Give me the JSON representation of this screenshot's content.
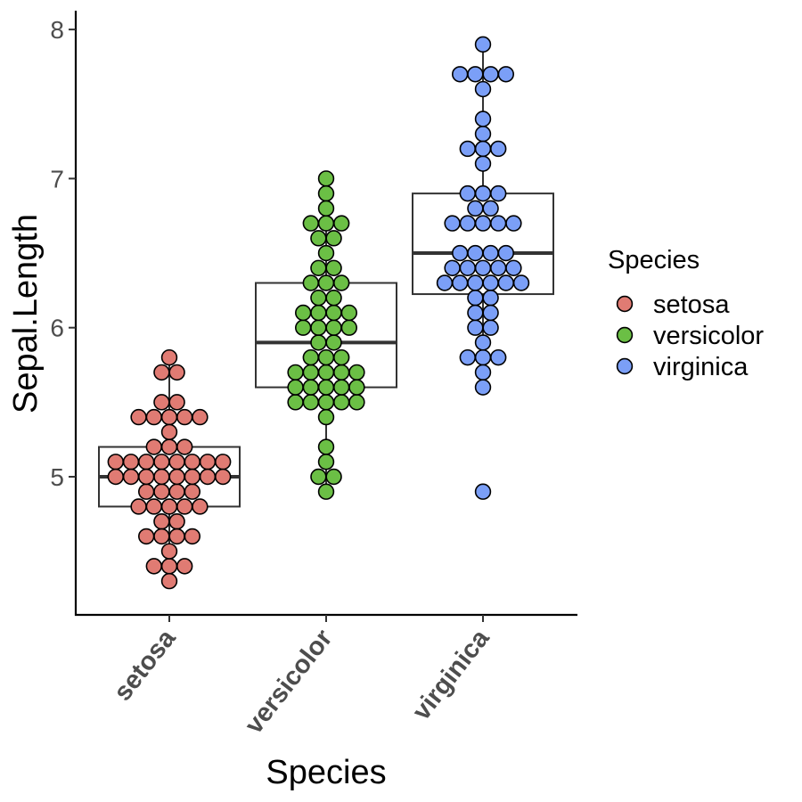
{
  "chart_data": {
    "type": "boxplot-dotplot",
    "xlabel": "Species",
    "ylabel": "Sepal.Length",
    "categories": [
      "setosa",
      "versicolor",
      "virginica"
    ],
    "colors": {
      "setosa": "#E07B73",
      "versicolor": "#6BBF45",
      "virginica": "#7B9FF7"
    },
    "ylim": [
      4.1,
      8.1
    ],
    "yticks": [
      5,
      6,
      7,
      8
    ],
    "legend": {
      "title": "Species",
      "position": "right",
      "entries": [
        "setosa",
        "versicolor",
        "virginica"
      ]
    },
    "grid": false,
    "boxes": [
      {
        "category": "setosa",
        "q1": 4.8,
        "median": 5.0,
        "q3": 5.2,
        "whisker_low": 4.3,
        "whisker_high": 5.8
      },
      {
        "category": "versicolor",
        "q1": 5.6,
        "median": 5.9,
        "q3": 6.3,
        "whisker_low": 4.9,
        "whisker_high": 7.0
      },
      {
        "category": "virginica",
        "q1": 6.225,
        "median": 6.5,
        "q3": 6.9,
        "whisker_low": 5.6,
        "whisker_high": 7.9
      }
    ],
    "series": [
      {
        "name": "setosa",
        "values": [
          5.1,
          4.9,
          4.7,
          4.6,
          5.0,
          5.4,
          4.6,
          5.0,
          4.4,
          4.9,
          5.4,
          4.8,
          4.8,
          4.3,
          5.8,
          5.7,
          5.4,
          5.1,
          5.7,
          5.1,
          5.4,
          5.1,
          4.6,
          5.1,
          4.8,
          5.0,
          5.0,
          5.2,
          5.2,
          4.7,
          4.8,
          5.4,
          5.2,
          5.5,
          4.9,
          5.0,
          5.5,
          4.9,
          4.4,
          5.1,
          5.0,
          4.5,
          4.4,
          5.0,
          5.1,
          4.8,
          5.1,
          4.6,
          5.3,
          5.0
        ]
      },
      {
        "name": "versicolor",
        "values": [
          7.0,
          6.4,
          6.9,
          5.5,
          6.5,
          5.7,
          6.3,
          4.9,
          6.6,
          5.2,
          5.0,
          5.9,
          6.0,
          6.1,
          5.6,
          6.7,
          5.6,
          5.8,
          6.2,
          5.6,
          5.9,
          6.1,
          6.3,
          6.1,
          6.4,
          6.6,
          6.8,
          6.7,
          6.0,
          5.7,
          5.5,
          5.5,
          5.8,
          6.0,
          5.4,
          6.0,
          6.7,
          6.3,
          5.6,
          5.5,
          5.5,
          6.1,
          5.8,
          5.0,
          5.6,
          5.7,
          5.7,
          6.2,
          5.1,
          5.7
        ]
      },
      {
        "name": "virginica",
        "values": [
          6.3,
          5.8,
          7.1,
          6.3,
          6.5,
          7.6,
          4.9,
          7.3,
          6.7,
          7.2,
          6.5,
          6.4,
          6.8,
          5.7,
          5.8,
          6.4,
          6.5,
          7.7,
          7.7,
          6.0,
          6.9,
          5.6,
          7.7,
          6.3,
          6.7,
          7.2,
          6.2,
          6.1,
          6.4,
          7.2,
          7.4,
          7.9,
          6.4,
          6.3,
          6.1,
          7.7,
          6.3,
          6.4,
          6.0,
          6.9,
          6.7,
          6.9,
          5.8,
          6.8,
          6.7,
          6.7,
          6.3,
          6.5,
          6.2,
          5.9
        ]
      }
    ]
  }
}
